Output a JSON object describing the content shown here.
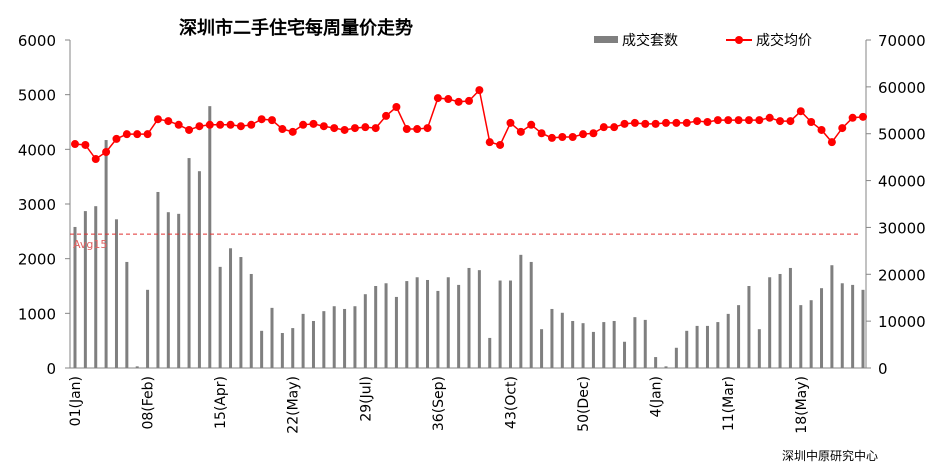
{
  "chart_data": {
    "type": "bar+line",
    "title": "深圳市二手住宅每周量价走势",
    "source": "深圳中原研究中心",
    "legend_placement": "top-right",
    "left_axis": {
      "ylim": [
        0,
        6000
      ],
      "ticks": [
        "0",
        "1000",
        "2000",
        "3000",
        "4000",
        "5000",
        "6000"
      ]
    },
    "right_axis": {
      "ylim": [
        0,
        70000
      ],
      "ticks": [
        "0",
        "10000",
        "20000",
        "30000",
        "40000",
        "50000",
        "60000",
        "70000"
      ]
    },
    "x_tick_labels": [
      "01(Jan)",
      "08(Feb)",
      "15(Apr)",
      "22(May)",
      "29(Jul)",
      "36(Sep)",
      "43(Oct)",
      "50(Dec)",
      "4(Jan)",
      "11(Mar)",
      "18(May)"
    ],
    "x_tick_every": 7,
    "reference_line": {
      "label": "Avg15",
      "value": 2450,
      "color": "#e03030"
    },
    "series": [
      {
        "name": "成交套数",
        "type": "bar",
        "axis": "left",
        "color": "#7f7f7f",
        "values": [
          2580,
          2870,
          2960,
          4170,
          2720,
          1940,
          30,
          1430,
          3220,
          2850,
          2820,
          3840,
          3600,
          4790,
          1850,
          2190,
          2030,
          1720,
          680,
          1100,
          640,
          730,
          990,
          860,
          1040,
          1130,
          1080,
          1130,
          1350,
          1500,
          1550,
          1300,
          1590,
          1660,
          1610,
          1410,
          1660,
          1520,
          1830,
          1790,
          550,
          1600,
          1600,
          2070,
          1940,
          710,
          1080,
          1010,
          860,
          820,
          660,
          840,
          860,
          480,
          930,
          880,
          200,
          30,
          370,
          680,
          770,
          770,
          840,
          990,
          1150,
          1500,
          710,
          1660,
          1720,
          1830,
          1150,
          1240,
          1460,
          1880,
          1550,
          1520,
          1430
        ]
      },
      {
        "name": "成交均价",
        "type": "line",
        "axis": "right",
        "color": "#ff0000",
        "values": [
          47800,
          47600,
          44600,
          46100,
          48900,
          49900,
          49900,
          49900,
          53100,
          52700,
          51900,
          50800,
          51600,
          51900,
          51900,
          51900,
          51600,
          51900,
          53100,
          52900,
          51000,
          50400,
          51900,
          52100,
          51600,
          51200,
          50800,
          51200,
          51400,
          51200,
          53800,
          55700,
          51000,
          51000,
          51200,
          57600,
          57400,
          56800,
          57000,
          59300,
          48200,
          47600,
          52300,
          50400,
          51900,
          50100,
          49100,
          49300,
          49300,
          49900,
          50100,
          51400,
          51400,
          52100,
          52300,
          52100,
          52100,
          52300,
          52300,
          52300,
          52700,
          52500,
          52900,
          52900,
          52900,
          52900,
          52900,
          53400,
          52700,
          52700,
          54800,
          52500,
          50800,
          48200,
          51200,
          53400,
          53600
        ]
      }
    ]
  }
}
